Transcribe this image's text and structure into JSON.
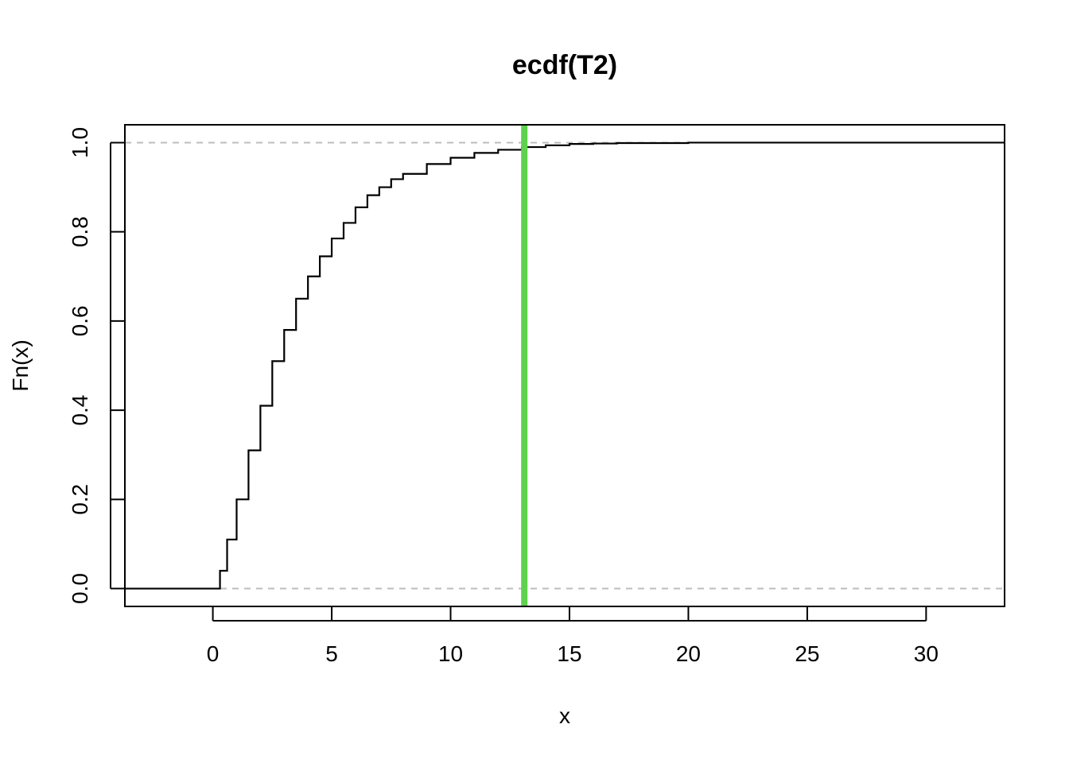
{
  "chart_data": {
    "type": "line",
    "title": "ecdf(T2)",
    "xlabel": "x",
    "ylabel": "Fn(x)",
    "xlim": [
      -3.7,
      33.3
    ],
    "ylim": [
      -0.04,
      1.04
    ],
    "x_ticks": [
      0,
      5,
      10,
      15,
      20,
      25,
      30
    ],
    "y_ticks": [
      0.0,
      0.2,
      0.4,
      0.6,
      0.8,
      1.0
    ],
    "x_tick_labels": [
      "0",
      "5",
      "10",
      "15",
      "20",
      "25",
      "30"
    ],
    "y_tick_labels": [
      "0.0",
      "0.2",
      "0.4",
      "0.6",
      "0.8",
      "1.0"
    ],
    "reference_lines": {
      "y_values": [
        0.0,
        1.0
      ],
      "color": "#bdbdbd",
      "style": "dashed"
    },
    "vertical_line": {
      "x": 13.1,
      "color": "#5ed14d"
    },
    "series": [
      {
        "color": "#000000",
        "x": [
          -3.7,
          0,
          0.3,
          0.6,
          1.0,
          1.5,
          2.0,
          2.5,
          3.0,
          3.5,
          4.0,
          4.5,
          5.0,
          5.5,
          6.0,
          6.5,
          7.0,
          7.5,
          8.0,
          9.0,
          10.0,
          11.0,
          12.0,
          13.0,
          14.0,
          15.0,
          16.0,
          17.0,
          20.0,
          25.0,
          33.3
        ],
        "y": [
          0,
          0,
          0.04,
          0.11,
          0.2,
          0.31,
          0.41,
          0.51,
          0.58,
          0.65,
          0.7,
          0.745,
          0.785,
          0.82,
          0.855,
          0.882,
          0.9,
          0.918,
          0.93,
          0.952,
          0.966,
          0.977,
          0.984,
          0.99,
          0.994,
          0.997,
          0.998,
          0.999,
          1.0,
          1.0,
          1.0
        ]
      }
    ]
  }
}
